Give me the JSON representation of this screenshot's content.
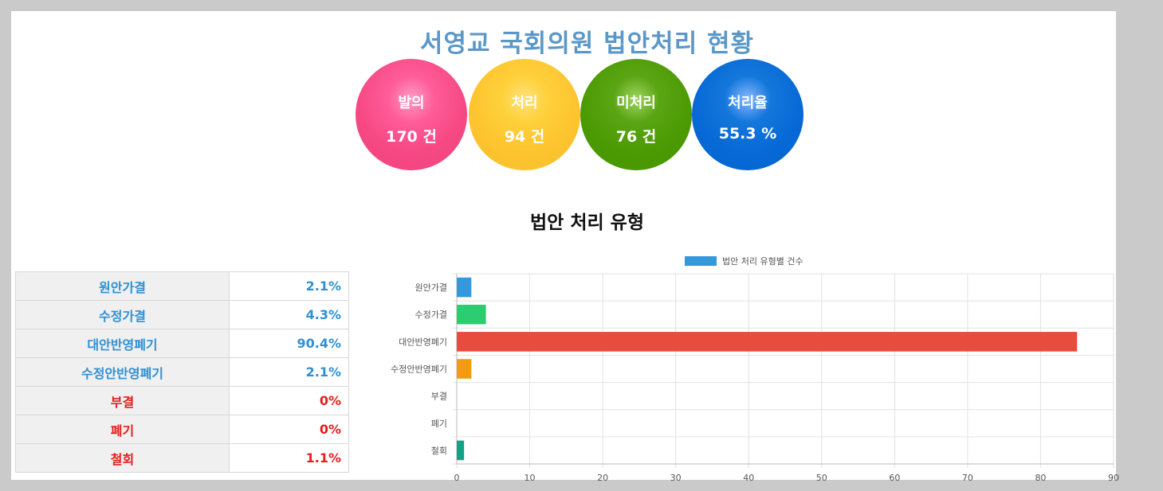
{
  "title": "서영교 국회의원 법안처리 현황",
  "stats": [
    {
      "label": "발의",
      "value": "170 건"
    },
    {
      "label": "처리",
      "value": "94 건"
    },
    {
      "label": "미처리",
      "value": "76 건"
    },
    {
      "label": "처리율",
      "value": "55.3 %"
    }
  ],
  "section_title": "법안 처리 유형",
  "table": [
    {
      "name": "원안가결",
      "pct": "2.1%",
      "color": "#2f90d3"
    },
    {
      "name": "수정가결",
      "pct": "4.3%",
      "color": "#2f90d3"
    },
    {
      "name": "대안반영폐기",
      "pct": "90.4%",
      "color": "#2f90d3"
    },
    {
      "name": "수정안반영폐기",
      "pct": "2.1%",
      "color": "#2f90d3"
    },
    {
      "name": "부결",
      "pct": "0%",
      "color": "#e51d1d"
    },
    {
      "name": "폐기",
      "pct": "0%",
      "color": "#e51d1d"
    },
    {
      "name": "철회",
      "pct": "1.1%",
      "color": "#e51d1d"
    }
  ],
  "chart_data": {
    "type": "bar",
    "orientation": "horizontal",
    "legend": "법안 처리 유형별 건수",
    "legend_color": "#3498db",
    "legend_position": "top",
    "categories": [
      "원안가결",
      "수정가결",
      "대안반영폐기",
      "수정안반영폐기",
      "부결",
      "폐기",
      "철회"
    ],
    "values": [
      2,
      4,
      85,
      2,
      0,
      0,
      1
    ],
    "colors": [
      "#3498db",
      "#2ecc71",
      "#e74c3c",
      "#f39c12",
      "#9b59b6",
      "#34495e",
      "#16a085"
    ],
    "xlim": [
      0,
      90
    ],
    "xticks": [
      0,
      10,
      20,
      30,
      40,
      50,
      60,
      70,
      80,
      90
    ],
    "grid": true
  }
}
